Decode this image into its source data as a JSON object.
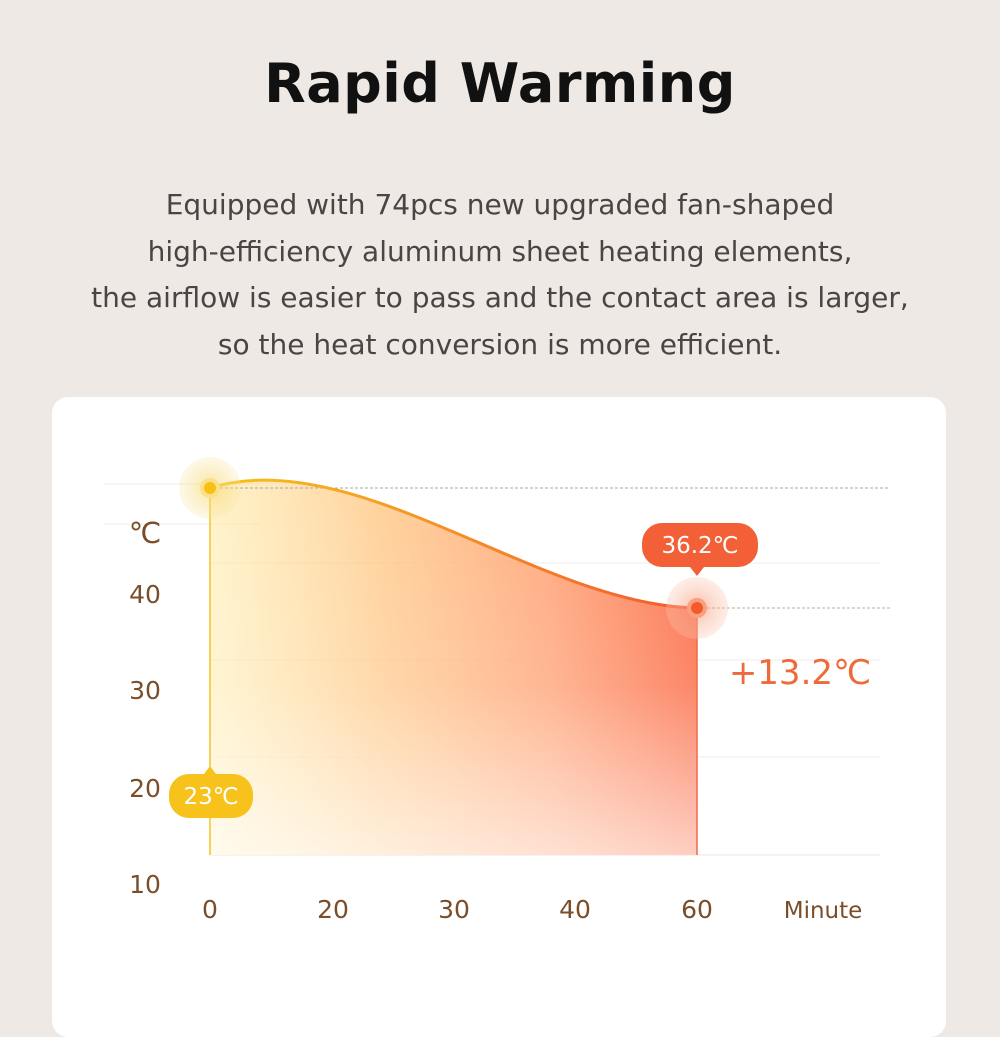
{
  "title": "Rapid Warming",
  "description": [
    "Equipped with 74pcs new upgraded fan-shaped",
    "high-efficiency aluminum sheet heating elements,",
    "the airflow is easier to pass and the contact area is larger,",
    "so the heat conversion is more efficient."
  ],
  "chart_data": {
    "type": "area",
    "y_unit_label": "℃",
    "xlabel": "Minute",
    "x_ticks": [
      "0",
      "20",
      "30",
      "40",
      "60"
    ],
    "y_ticks": [
      "40",
      "30",
      "20",
      "10"
    ],
    "series": [
      {
        "x": [
          0,
          60
        ],
        "y": [
          23,
          36.2
        ]
      }
    ],
    "annotations": {
      "start_label": "23℃",
      "end_label": "36.2℃",
      "delta_label": "+13.2℃"
    },
    "grid": true,
    "colors": {
      "start": "#f5c518",
      "end": "#f25a2e",
      "axis_text": "#7a4e2a"
    }
  }
}
